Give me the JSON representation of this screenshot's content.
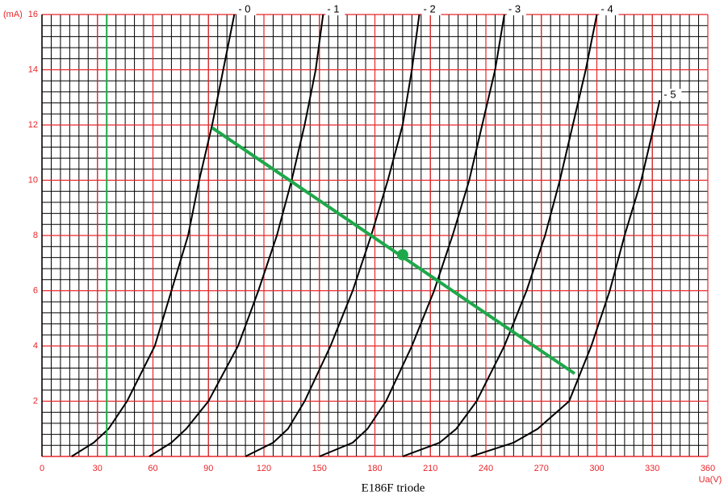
{
  "chart_data": {
    "type": "line",
    "title": "E186F triode",
    "y_label": "(mA)",
    "x_label": "Ua(V)",
    "xlim": [
      0,
      360
    ],
    "ylim": [
      0,
      16
    ],
    "xticks": [
      0,
      30,
      60,
      90,
      120,
      150,
      180,
      210,
      240,
      270,
      300,
      330,
      360
    ],
    "yticks": [
      2,
      4,
      6,
      8,
      10,
      12,
      14,
      16
    ],
    "grid": true,
    "grid_color": "#e8262a",
    "minor_grid": {
      "x": 5,
      "y": 0.4,
      "color": "#000000"
    },
    "series": [
      {
        "name": "- 0",
        "color": "#000000",
        "x": [
          16,
          28,
          36,
          46,
          61,
          70,
          79,
          85,
          92,
          98,
          104
        ],
        "values": [
          0,
          0.5,
          1,
          2,
          4,
          6,
          8,
          10,
          12,
          14,
          16
        ]
      },
      {
        "name": "- 1",
        "color": "#000000",
        "x": [
          58,
          70,
          78,
          90,
          106,
          117,
          127,
          135,
          142,
          148,
          152
        ],
        "values": [
          0,
          0.5,
          1,
          2,
          4,
          6,
          8,
          10,
          12,
          14,
          16
        ]
      },
      {
        "name": "- 2",
        "color": "#000000",
        "x": [
          110,
          125,
          133,
          142,
          156,
          168,
          178,
          187,
          195,
          200,
          204
        ],
        "values": [
          0,
          0.5,
          1,
          2,
          4,
          6,
          8,
          10,
          12,
          14,
          16
        ]
      },
      {
        "name": "- 3",
        "color": "#000000",
        "x": [
          150,
          168,
          176,
          186,
          200,
          212,
          222,
          231,
          238,
          245,
          250
        ],
        "values": [
          0,
          0.5,
          1,
          2,
          4,
          6,
          8,
          10,
          12,
          14,
          16
        ]
      },
      {
        "name": "- 4",
        "color": "#000000",
        "x": [
          195,
          215,
          224,
          235,
          250,
          262,
          272,
          280,
          287,
          294,
          300
        ],
        "values": [
          0,
          0.5,
          1,
          2,
          4,
          6,
          8,
          10,
          12,
          14,
          16
        ]
      },
      {
        "name": "- 5",
        "color": "#000000",
        "x": [
          232,
          255,
          268,
          285,
          297,
          307,
          315,
          324,
          331,
          334
        ],
        "values": [
          0,
          0.5,
          1,
          2,
          4,
          6,
          8,
          10,
          12,
          12.9
        ]
      }
    ],
    "vertical_line": {
      "x": 35,
      "color": "#1fa84a"
    },
    "load_line": {
      "x": [
        92,
        288
      ],
      "values": [
        11.9,
        3.0
      ],
      "color": "#1fa84a"
    },
    "operating_point": {
      "x": 195,
      "value": 7.3,
      "color": "#1fa84a"
    }
  }
}
